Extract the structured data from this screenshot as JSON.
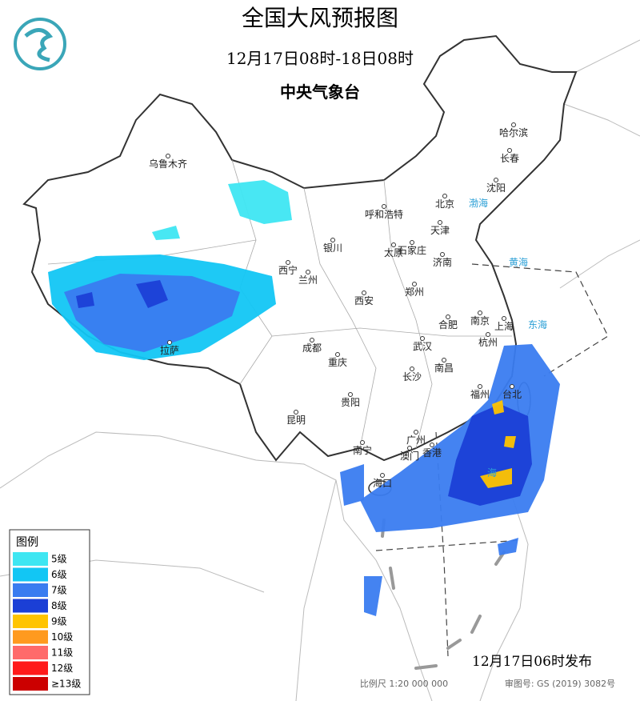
{
  "header": {
    "title": "全国大风预报图",
    "period": "12月17日08时-18日08时",
    "issuer": "中央气象台"
  },
  "legend": {
    "title": "图例",
    "items": [
      {
        "label": "5级",
        "color": "#3ee6f2"
      },
      {
        "label": "6级",
        "color": "#12c6f4"
      },
      {
        "label": "7级",
        "color": "#3a7cf0"
      },
      {
        "label": "8级",
        "color": "#1b3fd6"
      },
      {
        "label": "9级",
        "color": "#ffc400"
      },
      {
        "label": "10级",
        "color": "#ff9a1f"
      },
      {
        "label": "11级",
        "color": "#ff6a6a"
      },
      {
        "label": "12级",
        "color": "#ff1a1a"
      },
      {
        "label": "≥13级",
        "color": "#cc0000"
      }
    ]
  },
  "cities": [
    "乌鲁木齐",
    "哈尔滨",
    "长春",
    "沈阳",
    "北京",
    "天津",
    "呼和浩特",
    "石家庄",
    "太原",
    "济南",
    "银川",
    "西宁",
    "兰州",
    "西安",
    "郑州",
    "合肥",
    "南京",
    "上海",
    "杭州",
    "武汉",
    "成都",
    "重庆",
    "拉萨",
    "长沙",
    "南昌",
    "贵阳",
    "福州",
    "台北",
    "昆明",
    "南宁",
    "广州",
    "澳门",
    "香港",
    "海口"
  ],
  "seas": [
    "渤海",
    "黄海",
    "东海",
    "海"
  ],
  "footer": {
    "issued": "12月17日06时发布",
    "scale": "比例尺 1:20 000 000",
    "review": "审图号: GS (2019) 3082号"
  }
}
